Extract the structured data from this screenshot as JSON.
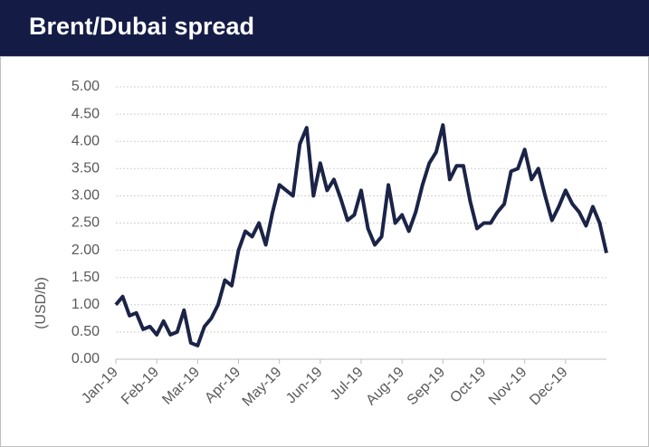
{
  "chart_data": {
    "type": "line",
    "title": "Brent/Dubai spread",
    "y_label": "(USD/b)",
    "categories": [
      "Jan-19",
      null,
      null,
      null,
      null,
      null,
      "Feb-19",
      null,
      null,
      null,
      null,
      null,
      "Mar-19",
      null,
      null,
      null,
      null,
      null,
      "Apr-19",
      null,
      null,
      null,
      null,
      null,
      "May-19",
      null,
      null,
      null,
      null,
      null,
      "Jun-19",
      null,
      null,
      null,
      null,
      null,
      "Jul-19",
      null,
      null,
      null,
      null,
      null,
      "Aug-19",
      null,
      null,
      null,
      null,
      null,
      "Sep-19",
      null,
      null,
      null,
      null,
      null,
      "Oct-19",
      null,
      null,
      null,
      null,
      null,
      "Nov-19",
      null,
      null,
      null,
      null,
      null,
      "Dec-19",
      null,
      null,
      null,
      null,
      null,
      null
    ],
    "series": [
      {
        "name": "Brent/Dubai spread",
        "color": "#1b2447",
        "values": [
          1.0,
          1.15,
          0.8,
          0.85,
          0.55,
          0.6,
          0.45,
          0.7,
          0.45,
          0.5,
          0.9,
          0.3,
          0.25,
          0.6,
          0.75,
          1.0,
          1.45,
          1.35,
          2.0,
          2.35,
          2.25,
          2.5,
          2.1,
          2.7,
          3.2,
          3.1,
          3.0,
          3.95,
          4.25,
          3.0,
          3.6,
          3.1,
          3.3,
          2.95,
          2.55,
          2.65,
          3.1,
          2.4,
          2.1,
          2.25,
          3.2,
          2.5,
          2.65,
          2.35,
          2.7,
          3.2,
          3.6,
          3.8,
          4.3,
          3.3,
          3.55,
          3.55,
          2.9,
          2.4,
          2.5,
          2.5,
          2.7,
          2.85,
          3.45,
          3.5,
          3.85,
          3.3,
          3.5,
          3.0,
          2.55,
          2.8,
          3.1,
          2.85,
          2.7,
          2.45,
          2.8,
          2.5,
          1.95
        ]
      }
    ],
    "ylim": [
      0,
      5
    ],
    "yticks": [
      {
        "value": 0,
        "label": "0.00"
      },
      {
        "value": 0.5,
        "label": "0.50"
      },
      {
        "value": 1,
        "label": "1.00"
      },
      {
        "value": 1.5,
        "label": "1.50"
      },
      {
        "value": 2,
        "label": "2.00"
      },
      {
        "value": 2.5,
        "label": "2.50"
      },
      {
        "value": 3,
        "label": "3.00"
      },
      {
        "value": 3.5,
        "label": "3.50"
      },
      {
        "value": 4,
        "label": "4.00"
      },
      {
        "value": 4.5,
        "label": "4.50"
      },
      {
        "value": 5,
        "label": "5.00"
      }
    ],
    "grid": true
  }
}
